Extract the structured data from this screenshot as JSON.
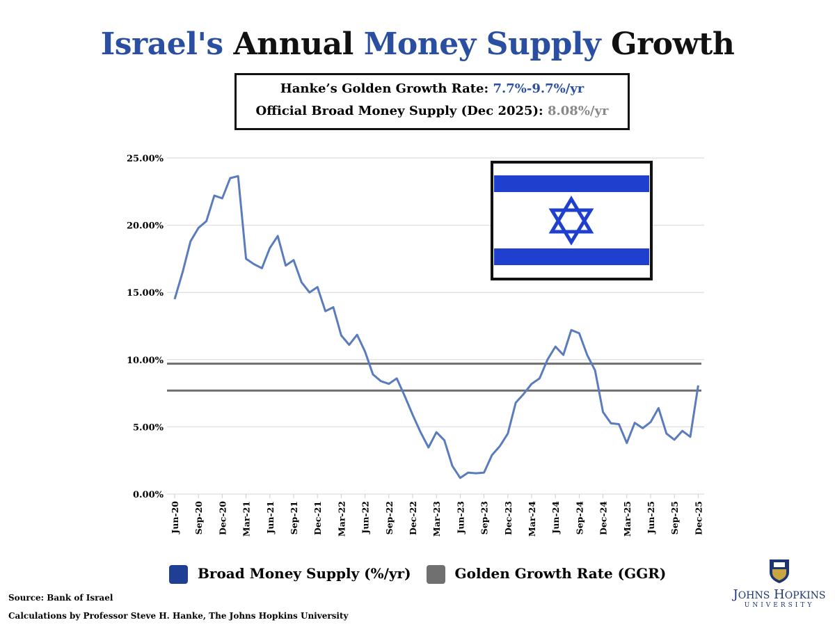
{
  "title": {
    "part1": "Israel's",
    "part2": "Annual",
    "part3": "Money Supply",
    "part4": "Growth"
  },
  "info_box": {
    "line1_label": "Hanke’s Golden Growth Rate:",
    "line1_value": "7.7%-9.7%/yr",
    "line2_label": "Official Broad Money Supply (Dec 2025):",
    "line2_value": "8.08%/yr"
  },
  "colors": {
    "series": "#5a7bbd",
    "ggr": "#6e6e6e",
    "title_blue": "#2a4fa0",
    "legend_blue": "#1f3f94",
    "flag_blue": "#1f3fcf"
  },
  "chart_data": {
    "type": "line",
    "ylim": [
      0,
      25
    ],
    "yticks": [
      "0.00%",
      "5.00%",
      "10.00%",
      "15.00%",
      "20.00%",
      "25.00%"
    ],
    "ytick_values": [
      0,
      5,
      10,
      15,
      20,
      25
    ],
    "grid": true,
    "x_tick_labels": [
      "Jun-20",
      "Sep-20",
      "Dec-20",
      "Mar-21",
      "Jun-21",
      "Sep-21",
      "Dec-21",
      "Mar-22",
      "Jun-22",
      "Sep-22",
      "Dec-22",
      "Mar-23",
      "Jun-23",
      "Sep-23",
      "Dec-23",
      "Mar-24",
      "Jun-24",
      "Sep-24",
      "Dec-24",
      "Mar-25",
      "Jun-25",
      "Sep-25",
      "Dec-25"
    ],
    "series": [
      {
        "name": "Broad Money Supply (%/yr)",
        "values": [
          14.5,
          16.5,
          18.8,
          19.8,
          20.3,
          22.2,
          22.0,
          23.5,
          23.65,
          17.5,
          17.1,
          16.8,
          18.3,
          19.2,
          17.0,
          17.4,
          15.75,
          15.0,
          15.4,
          13.6,
          13.9,
          11.8,
          11.1,
          11.85,
          10.6,
          8.9,
          8.4,
          8.2,
          8.6,
          7.3,
          5.9,
          4.6,
          3.47,
          4.6,
          4.0,
          2.1,
          1.2,
          1.6,
          1.55,
          1.6,
          2.9,
          3.57,
          4.5,
          6.8,
          7.45,
          8.2,
          8.6,
          10.0,
          10.97,
          10.35,
          12.2,
          11.96,
          10.35,
          9.2,
          6.1,
          5.27,
          5.2,
          3.8,
          5.3,
          4.9,
          5.35,
          6.4,
          4.5,
          4.04,
          4.7,
          4.26,
          8.08
        ]
      }
    ],
    "reference_lines": [
      {
        "name": "Golden Growth Rate (GGR)",
        "values": [
          7.7,
          9.7
        ]
      }
    ],
    "legend": {
      "position": "bottom",
      "items": [
        "Broad Money Supply (%/yr)",
        "Golden Growth Rate (GGR)"
      ]
    }
  },
  "footer": {
    "source": "Source: Bank of Israel",
    "calc": "Calculations by Professor Steve H. Hanke, The Johns Hopkins University"
  },
  "logo": {
    "name": "JOHNS HOPKINS",
    "sub": "UNIVERSITY"
  }
}
